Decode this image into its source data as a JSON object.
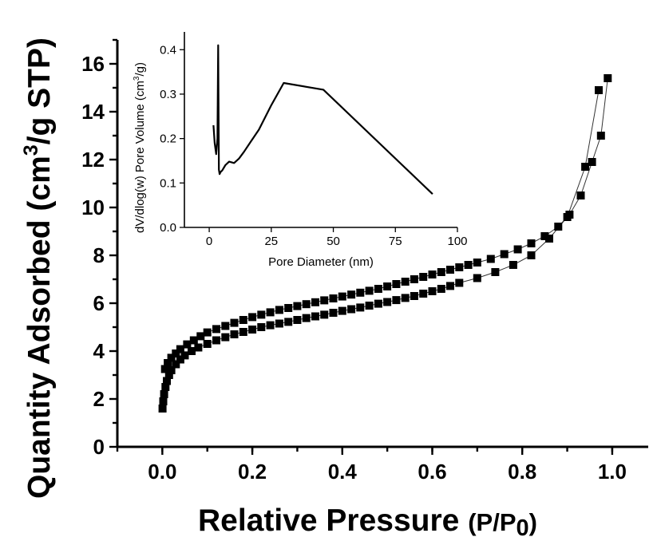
{
  "chart_data": [
    {
      "type": "scatter",
      "xlabel_main": "Relative Pressure ",
      "xlabel_paren": "(P/P",
      "xlabel_sub": "0",
      "xlabel_close": ")",
      "ylabel_pre": "Quantity Adsorbed (cm",
      "ylabel_sup": "3",
      "ylabel_post": "/g STP)",
      "xlim": [
        -0.1,
        1.08
      ],
      "ylim": [
        0,
        17
      ],
      "x_ticks": [
        "0.0",
        "0.2",
        "0.4",
        "0.6",
        "0.8",
        "1.0"
      ],
      "y_ticks": [
        "0",
        "2",
        "4",
        "6",
        "8",
        "10",
        "12",
        "14",
        "16"
      ],
      "series": [
        {
          "branch": "adsorption",
          "x": [
            0.0005,
            0.002,
            0.004,
            0.007,
            0.01,
            0.015,
            0.02,
            0.03,
            0.04,
            0.05,
            0.065,
            0.08,
            0.1,
            0.12,
            0.14,
            0.16,
            0.18,
            0.2,
            0.22,
            0.24,
            0.26,
            0.28,
            0.3,
            0.32,
            0.34,
            0.36,
            0.38,
            0.4,
            0.42,
            0.44,
            0.46,
            0.48,
            0.5,
            0.52,
            0.54,
            0.56,
            0.58,
            0.6,
            0.62,
            0.64,
            0.66,
            0.7,
            0.74,
            0.78,
            0.82,
            0.86,
            0.9,
            0.94,
            0.97
          ],
          "y": [
            1.6,
            1.9,
            2.2,
            2.5,
            2.75,
            3.0,
            3.2,
            3.45,
            3.65,
            3.82,
            4.0,
            4.15,
            4.3,
            4.45,
            4.58,
            4.7,
            4.8,
            4.9,
            5.0,
            5.08,
            5.15,
            5.22,
            5.3,
            5.38,
            5.45,
            5.52,
            5.6,
            5.68,
            5.75,
            5.82,
            5.9,
            5.98,
            6.05,
            6.13,
            6.22,
            6.3,
            6.4,
            6.5,
            6.6,
            6.72,
            6.85,
            7.05,
            7.3,
            7.6,
            8.0,
            8.7,
            9.6,
            11.7,
            14.9
          ]
        },
        {
          "branch": "desorption",
          "x": [
            0.99,
            0.975,
            0.955,
            0.93,
            0.905,
            0.88,
            0.85,
            0.82,
            0.79,
            0.76,
            0.73,
            0.7,
            0.68,
            0.66,
            0.64,
            0.62,
            0.6,
            0.58,
            0.56,
            0.54,
            0.52,
            0.5,
            0.48,
            0.46,
            0.44,
            0.42,
            0.4,
            0.38,
            0.36,
            0.34,
            0.32,
            0.3,
            0.28,
            0.26,
            0.24,
            0.22,
            0.2,
            0.18,
            0.16,
            0.14,
            0.12,
            0.1,
            0.085,
            0.07,
            0.055,
            0.04,
            0.03,
            0.02,
            0.012,
            0.006
          ],
          "y": [
            15.4,
            13.0,
            11.9,
            10.5,
            9.7,
            9.2,
            8.8,
            8.5,
            8.25,
            8.05,
            7.85,
            7.7,
            7.6,
            7.5,
            7.4,
            7.3,
            7.2,
            7.1,
            7.0,
            6.9,
            6.8,
            6.7,
            6.6,
            6.52,
            6.44,
            6.36,
            6.28,
            6.2,
            6.12,
            6.04,
            5.96,
            5.88,
            5.8,
            5.72,
            5.62,
            5.52,
            5.42,
            5.3,
            5.18,
            5.05,
            4.92,
            4.78,
            4.62,
            4.45,
            4.28,
            4.08,
            3.9,
            3.72,
            3.5,
            3.25
          ]
        }
      ]
    },
    {
      "type": "line",
      "xlabel": "Pore Diameter (nm)",
      "ylabel_pre": "dV/dlog(w) Pore Volume (cm",
      "ylabel_sup": "3",
      "ylabel_post": "/g)",
      "xlim": [
        -10,
        100
      ],
      "ylim": [
        0,
        0.44
      ],
      "x_ticks": [
        "0",
        "25",
        "50",
        "75",
        "100"
      ],
      "y_ticks": [
        "0.0",
        "0.1",
        "0.2",
        "0.3",
        "0.4"
      ],
      "series": [
        {
          "x": [
            1.7,
            2.2,
            2.8,
            3.3,
            3.6,
            3.9,
            4.2,
            4.6,
            5.2,
            6.5,
            8,
            10,
            12,
            14,
            17,
            20,
            25,
            30,
            46,
            90
          ],
          "y": [
            0.23,
            0.19,
            0.165,
            0.2,
            0.41,
            0.13,
            0.12,
            0.125,
            0.128,
            0.14,
            0.148,
            0.145,
            0.155,
            0.17,
            0.195,
            0.22,
            0.275,
            0.325,
            0.31,
            0.075
          ]
        }
      ]
    }
  ]
}
